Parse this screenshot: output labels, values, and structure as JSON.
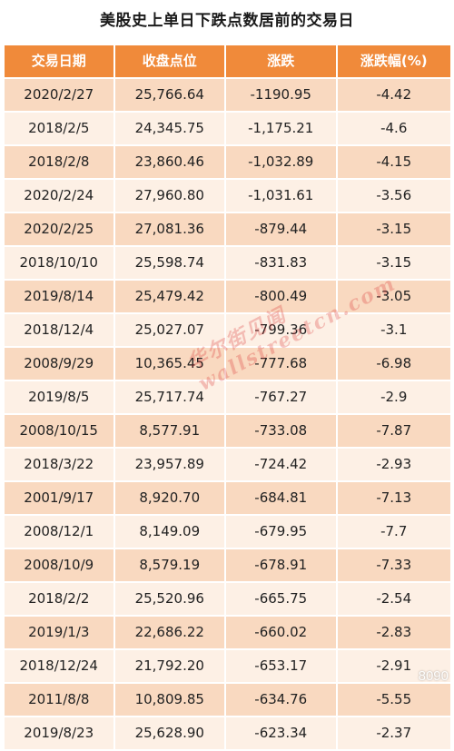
{
  "title": "美股史上单日下跌点数居前的交易日",
  "headers": [
    "交易日期",
    "收盘点位",
    "涨跌",
    "涨跌幅(%)"
  ],
  "rows": [
    [
      "2020/2/27",
      "25,766.64",
      "-1190.95",
      "-4.42"
    ],
    [
      "2018/2/5",
      "24,345.75",
      "-1,175.21",
      "-4.6"
    ],
    [
      "2018/2/8",
      "23,860.46",
      "-1,032.89",
      "-4.15"
    ],
    [
      "2020/2/24",
      "27,960.80",
      "-1,031.61",
      "-3.56"
    ],
    [
      "2020/2/25",
      "27,081.36",
      "-879.44",
      "-3.15"
    ],
    [
      "2018/10/10",
      "25,598.74",
      "-831.83",
      "-3.15"
    ],
    [
      "2019/8/14",
      "25,479.42",
      "-800.49",
      "-3.05"
    ],
    [
      "2018/12/4",
      "25,027.07",
      "-799.36",
      "-3.1"
    ],
    [
      "2008/9/29",
      "10,365.45",
      "-777.68",
      "-6.98"
    ],
    [
      "2019/8/5",
      "25,717.74",
      "-767.27",
      "-2.9"
    ],
    [
      "2008/10/15",
      "8,577.91",
      "-733.08",
      "-7.87"
    ],
    [
      "2018/3/22",
      "23,957.89",
      "-724.42",
      "-2.93"
    ],
    [
      "2001/9/17",
      "8,920.70",
      "-684.81",
      "-7.13"
    ],
    [
      "2008/12/1",
      "8,149.09",
      "-679.95",
      "-7.7"
    ],
    [
      "2008/10/9",
      "8,579.19",
      "-678.91",
      "-7.33"
    ],
    [
      "2018/2/2",
      "25,520.96",
      "-665.75",
      "-2.54"
    ],
    [
      "2019/1/3",
      "22,686.22",
      "-660.02",
      "-2.83"
    ],
    [
      "2018/12/24",
      "21,792.20",
      "-653.17",
      "-2.91"
    ],
    [
      "2011/8/8",
      "10,809.85",
      "-634.76",
      "-5.55"
    ],
    [
      "2019/8/23",
      "25,628.90",
      "-623.34",
      "-2.37"
    ]
  ],
  "watermark": {
    "line1": "华尔街见闻",
    "line2": "wallstreetcn.com"
  },
  "corner_mark": "8090",
  "colors": {
    "header_bg": "#f08a3a",
    "row_dark": "#f9d9c0",
    "row_light": "#fdf0e5"
  }
}
